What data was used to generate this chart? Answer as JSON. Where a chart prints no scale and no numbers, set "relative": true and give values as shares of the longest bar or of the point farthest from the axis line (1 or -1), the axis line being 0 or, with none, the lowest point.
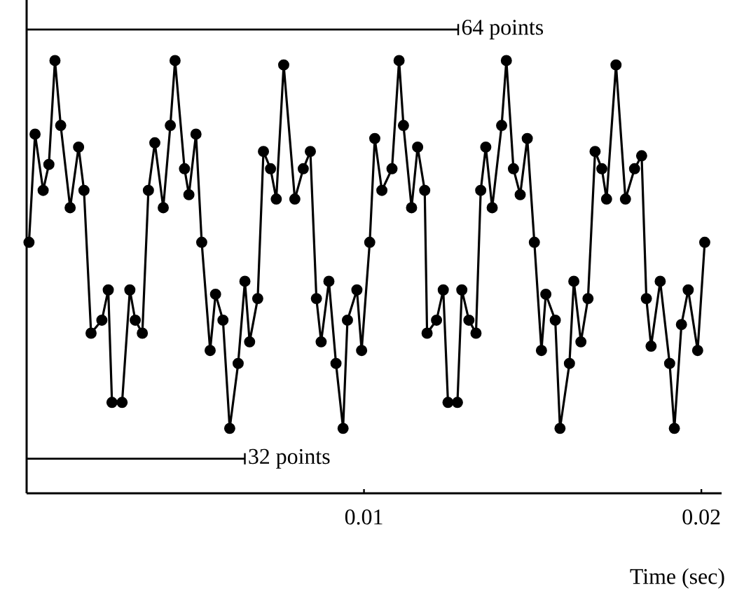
{
  "chart_data": {
    "type": "line",
    "relative": true,
    "xlabel": "Time (sec)",
    "xlim": [
      0,
      0.0206
    ],
    "xticks": [
      0.01,
      0.02
    ],
    "grid": false,
    "marker": "circle",
    "line_style": "solid",
    "annotations": [
      "64 points",
      "32 points"
    ],
    "series": [
      {
        "color": "#000000",
        "x": [
          7e-05,
          0.00025,
          0.00049,
          0.00066,
          0.00084,
          0.00101,
          0.00129,
          0.00154,
          0.0017,
          0.00191,
          0.00223,
          0.00242,
          0.00253,
          0.00283,
          0.00306,
          0.00322,
          0.00343,
          0.00361,
          0.0038,
          0.00405,
          0.00426,
          0.0044,
          0.00468,
          0.00481,
          0.00502,
          0.00519,
          0.00544,
          0.0056,
          0.00582,
          0.00602,
          0.00627,
          0.00647,
          0.00661,
          0.00685,
          0.00702,
          0.00723,
          0.0074,
          0.00762,
          0.00795,
          0.0082,
          0.00841,
          0.00859,
          0.00873,
          0.00896,
          0.00917,
          0.00938,
          0.00951,
          0.00979,
          0.00993,
          0.01017,
          0.01032,
          0.01053,
          0.01083,
          0.01104,
          0.01117,
          0.01141,
          0.01159,
          0.0118,
          0.01187,
          0.01215,
          0.01235,
          0.01249,
          0.01277,
          0.0129,
          0.01311,
          0.01332,
          0.01346,
          0.01361,
          0.0138,
          0.01408,
          0.01422,
          0.01443,
          0.01463,
          0.01484,
          0.01505,
          0.01526,
          0.01539,
          0.01567,
          0.01581,
          0.01609,
          0.01622,
          0.01643,
          0.01664,
          0.01685,
          0.01705,
          0.01719,
          0.01747,
          0.01775,
          0.01802,
          0.01823,
          0.01837,
          0.01851,
          0.01878,
          0.01906,
          0.0192,
          0.01941,
          0.01961,
          0.01989,
          0.0201
        ],
        "values": [
          0.58,
          0.83,
          0.7,
          0.76,
          1.0,
          0.85,
          0.66,
          0.8,
          0.7,
          0.37,
          0.4,
          0.47,
          0.21,
          0.21,
          0.47,
          0.4,
          0.37,
          0.7,
          0.81,
          0.66,
          0.85,
          1.0,
          0.75,
          0.69,
          0.83,
          0.58,
          0.33,
          0.46,
          0.4,
          0.15,
          0.3,
          0.49,
          0.35,
          0.45,
          0.79,
          0.75,
          0.68,
          0.99,
          0.68,
          0.75,
          0.79,
          0.45,
          0.35,
          0.49,
          0.3,
          0.15,
          0.4,
          0.47,
          0.33,
          0.58,
          0.82,
          0.7,
          0.75,
          1.0,
          0.85,
          0.66,
          0.8,
          0.7,
          0.37,
          0.4,
          0.47,
          0.21,
          0.21,
          0.47,
          0.4,
          0.37,
          0.7,
          0.8,
          0.66,
          0.85,
          1.0,
          0.75,
          0.69,
          0.82,
          0.58,
          0.33,
          0.46,
          0.4,
          0.15,
          0.3,
          0.49,
          0.35,
          0.45,
          0.79,
          0.75,
          0.68,
          0.99,
          0.68,
          0.75,
          0.78,
          0.45,
          0.34,
          0.49,
          0.3,
          0.15,
          0.39,
          0.47,
          0.33,
          0.58
        ]
      }
    ]
  }
}
